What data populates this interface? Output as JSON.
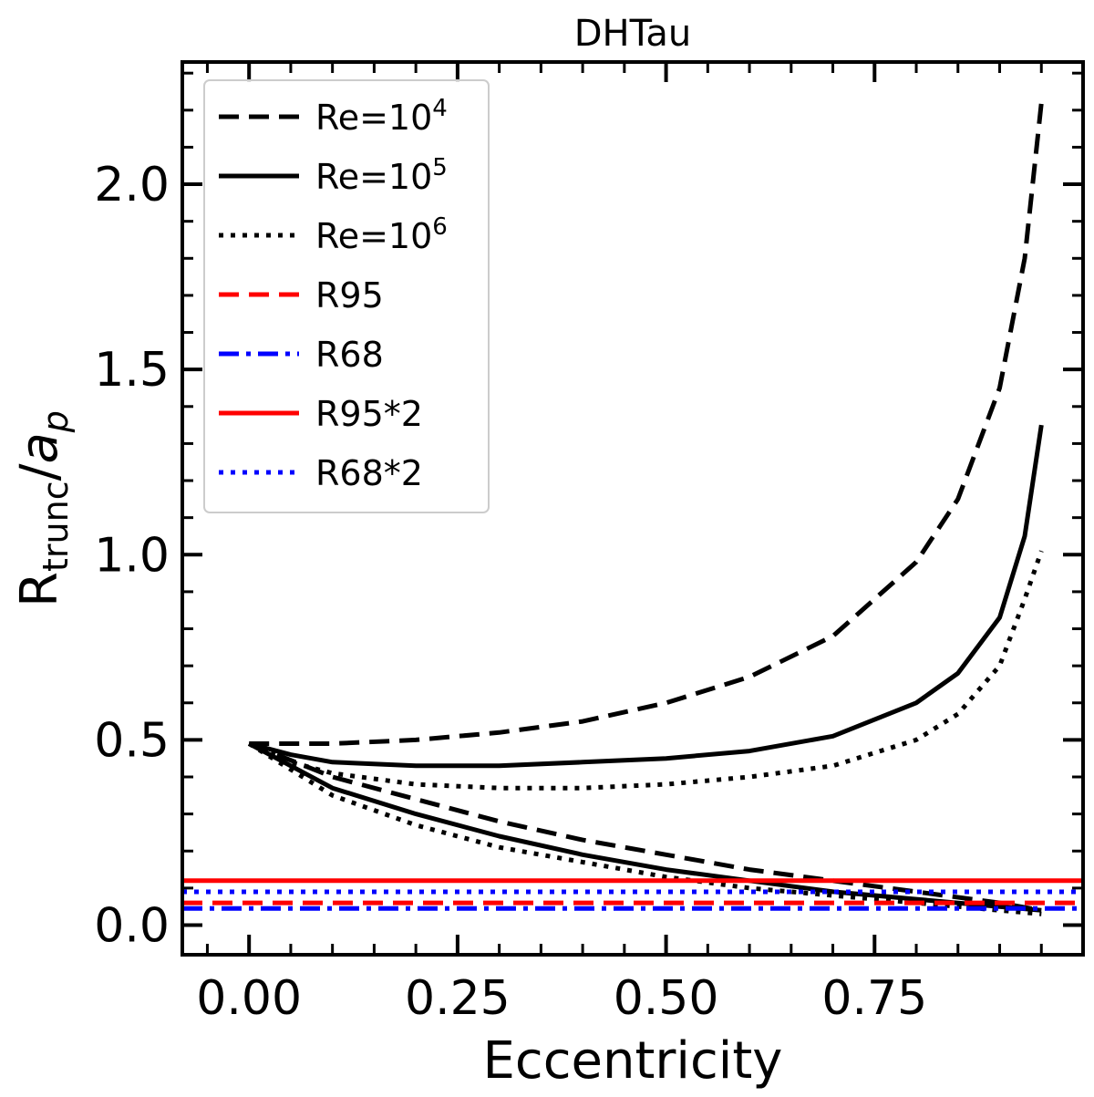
{
  "chart_data": {
    "type": "line",
    "title": "DHTau",
    "xlabel": "Eccentricity",
    "ylabel": {
      "main": "R",
      "sub": "trunc",
      "slash": "/",
      "a": "a",
      "asub": "p"
    },
    "xlim": [
      -0.08,
      1.0
    ],
    "ylim": [
      -0.08,
      2.33
    ],
    "xticks": [
      {
        "v": 0.0,
        "label": "0.00"
      },
      {
        "v": 0.25,
        "label": "0.25"
      },
      {
        "v": 0.5,
        "label": "0.50"
      },
      {
        "v": 0.75,
        "label": "0.75"
      }
    ],
    "yticks": [
      {
        "v": 0.0,
        "label": "0.0"
      },
      {
        "v": 0.5,
        "label": "0.5"
      },
      {
        "v": 1.0,
        "label": "1.0"
      },
      {
        "v": 1.5,
        "label": "1.5"
      },
      {
        "v": 2.0,
        "label": "2.0"
      }
    ],
    "legend_position": "top-left",
    "legend": [
      {
        "text": "Re=10",
        "sup": "4",
        "series": "re4"
      },
      {
        "text": "Re=10",
        "sup": "5",
        "series": "re5"
      },
      {
        "text": "Re=10",
        "sup": "6",
        "series": "re6"
      },
      {
        "text": "R95",
        "sup": "",
        "series": "r95"
      },
      {
        "text": "R68",
        "sup": "",
        "series": "r68"
      },
      {
        "text": "R95*2",
        "sup": "",
        "series": "r95x2"
      },
      {
        "text": "R68*2",
        "sup": "",
        "series": "r68x2"
      }
    ],
    "series": [
      {
        "name": "Re=10^4",
        "id": "re4",
        "color": "#000000",
        "style": "dashed",
        "upper": {
          "x": [
            0.0,
            0.05,
            0.1,
            0.2,
            0.3,
            0.4,
            0.5,
            0.6,
            0.7,
            0.8,
            0.85,
            0.9,
            0.93,
            0.95
          ],
          "y": [
            0.49,
            0.49,
            0.49,
            0.5,
            0.52,
            0.55,
            0.6,
            0.67,
            0.78,
            0.98,
            1.15,
            1.45,
            1.8,
            2.22
          ]
        },
        "lower": {
          "x": [
            0.0,
            0.1,
            0.2,
            0.3,
            0.4,
            0.5,
            0.6,
            0.7,
            0.8,
            0.9,
            0.95
          ],
          "y": [
            0.49,
            0.4,
            0.34,
            0.28,
            0.23,
            0.19,
            0.15,
            0.12,
            0.09,
            0.06,
            0.04
          ]
        }
      },
      {
        "name": "Re=10^5",
        "id": "re5",
        "color": "#000000",
        "style": "solid",
        "upper": {
          "x": [
            0.0,
            0.05,
            0.1,
            0.2,
            0.3,
            0.4,
            0.5,
            0.6,
            0.7,
            0.8,
            0.85,
            0.9,
            0.93,
            0.95
          ],
          "y": [
            0.49,
            0.46,
            0.44,
            0.43,
            0.43,
            0.44,
            0.45,
            0.47,
            0.51,
            0.6,
            0.68,
            0.83,
            1.05,
            1.35
          ]
        },
        "lower": {
          "x": [
            0.0,
            0.1,
            0.2,
            0.3,
            0.4,
            0.5,
            0.6,
            0.7,
            0.8,
            0.9,
            0.95
          ],
          "y": [
            0.49,
            0.37,
            0.3,
            0.24,
            0.19,
            0.15,
            0.12,
            0.09,
            0.07,
            0.05,
            0.04
          ]
        }
      },
      {
        "name": "Re=10^6",
        "id": "re6",
        "color": "#000000",
        "style": "dotted",
        "upper": {
          "x": [
            0.0,
            0.05,
            0.1,
            0.2,
            0.3,
            0.4,
            0.5,
            0.6,
            0.7,
            0.8,
            0.85,
            0.9,
            0.93,
            0.95
          ],
          "y": [
            0.49,
            0.44,
            0.41,
            0.38,
            0.37,
            0.37,
            0.38,
            0.4,
            0.43,
            0.5,
            0.57,
            0.7,
            0.88,
            1.01
          ]
        },
        "lower": {
          "x": [
            0.0,
            0.1,
            0.2,
            0.3,
            0.4,
            0.5,
            0.6,
            0.7,
            0.8,
            0.9,
            0.95
          ],
          "y": [
            0.49,
            0.35,
            0.27,
            0.21,
            0.17,
            0.13,
            0.1,
            0.08,
            0.06,
            0.04,
            0.03
          ]
        }
      },
      {
        "name": "R95",
        "id": "r95",
        "color": "#ff0000",
        "style": "dashed",
        "hline": 0.06
      },
      {
        "name": "R68",
        "id": "r68",
        "color": "#0000ff",
        "style": "dashdot",
        "hline": 0.045
      },
      {
        "name": "R95*2",
        "id": "r95x2",
        "color": "#ff0000",
        "style": "solid",
        "hline": 0.12
      },
      {
        "name": "R68*2",
        "id": "r68x2",
        "color": "#0000ff",
        "style": "dotted",
        "hline": 0.09
      }
    ]
  }
}
